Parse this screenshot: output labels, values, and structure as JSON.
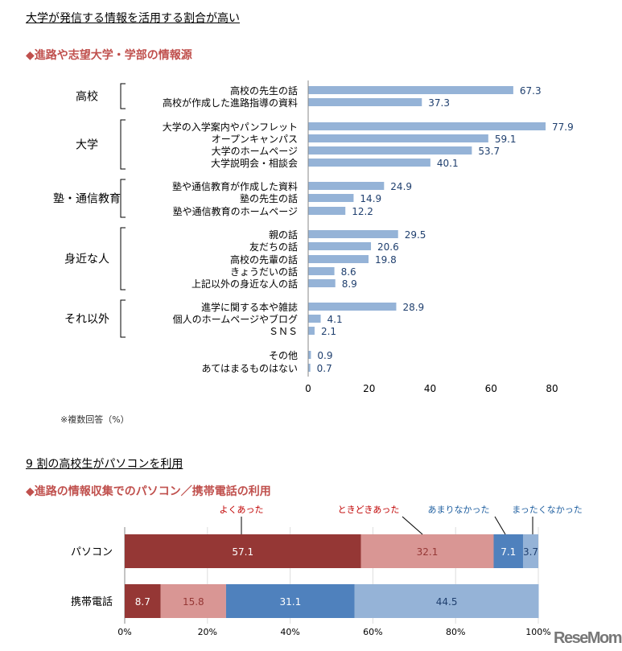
{
  "section1": {
    "heading": "大学が発信する情報を活用する割合が高い",
    "subheading": "◆進路や志望大学・学部の情報源",
    "note": "※複数回答（%）"
  },
  "section2": {
    "heading": "9 割の高校生がパソコンを利用",
    "subheading": "◆進路の情報収集でのパソコン／携帯電話の利用"
  },
  "watermark": "ReseMom",
  "colors": {
    "bar1": "#95b3d7",
    "value1": "#1f3f6e",
    "often": "#953735",
    "sometimes": "#d99694",
    "rarely": "#4f81bd",
    "never": "#95b3d7"
  },
  "chart_data": [
    {
      "type": "bar",
      "orientation": "horizontal",
      "xlim": [
        0,
        80
      ],
      "xticks": [
        "0",
        "20",
        "40",
        "60",
        "80"
      ],
      "groups": [
        {
          "name": "高校",
          "items": [
            {
              "label": "高校の先生の話",
              "value": 67.3
            },
            {
              "label": "高校が作成した進路指導の資料",
              "value": 37.3
            }
          ]
        },
        {
          "name": "大学",
          "items": [
            {
              "label": "大学の入学案内やパンフレット",
              "value": 77.9
            },
            {
              "label": "オープンキャンパス",
              "value": 59.1
            },
            {
              "label": "大学のホームページ",
              "value": 53.7
            },
            {
              "label": "大学説明会・相談会",
              "value": 40.1
            }
          ]
        },
        {
          "name": "塾・通信教育",
          "items": [
            {
              "label": "塾や通信教育が作成した資料",
              "value": 24.9
            },
            {
              "label": "塾の先生の話",
              "value": 14.9
            },
            {
              "label": "塾や通信教育のホームページ",
              "value": 12.2
            }
          ]
        },
        {
          "name": "身近な人",
          "items": [
            {
              "label": "親の話",
              "value": 29.5
            },
            {
              "label": "友だちの話",
              "value": 20.6
            },
            {
              "label": "高校の先輩の話",
              "value": 19.8
            },
            {
              "label": "きょうだいの話",
              "value": 8.6
            },
            {
              "label": "上記以外の身近な人の話",
              "value": 8.9
            }
          ]
        },
        {
          "name": "それ以外",
          "items": [
            {
              "label": "進学に関する本や雑誌",
              "value": 28.9
            },
            {
              "label": "個人のホームページやブログ",
              "value": 4.1
            },
            {
              "label": "ＳＮＳ",
              "value": 2.1
            }
          ]
        },
        {
          "name": "",
          "items": [
            {
              "label": "その他",
              "value": 0.9
            },
            {
              "label": "あてはまるものはない",
              "value": 0.7
            }
          ]
        }
      ]
    },
    {
      "type": "bar",
      "orientation": "horizontal",
      "stacked": true,
      "xlim": [
        0,
        100
      ],
      "xticks": [
        "0%",
        "20%",
        "40%",
        "60%",
        "80%",
        "100%"
      ],
      "categories": [
        "パソコン",
        "携帯電話"
      ],
      "series": [
        {
          "name": "よくあった",
          "values": [
            57.1,
            8.7
          ]
        },
        {
          "name": "ときどきあった",
          "values": [
            32.1,
            15.8
          ]
        },
        {
          "name": "あまりなかった",
          "values": [
            7.1,
            31.1
          ]
        },
        {
          "name": "まったくなかった",
          "values": [
            3.7,
            44.5
          ]
        }
      ]
    }
  ]
}
